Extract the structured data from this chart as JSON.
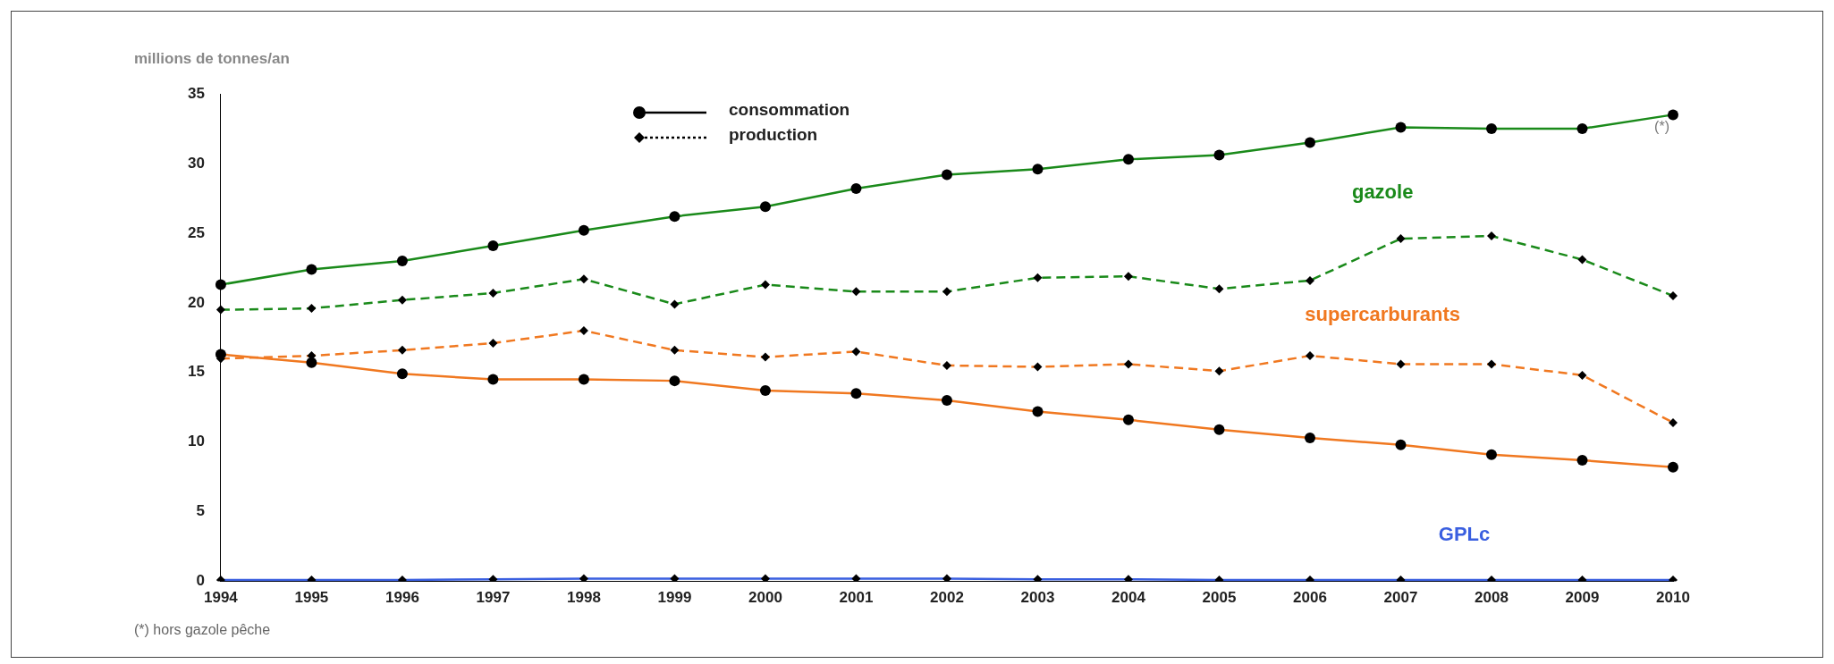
{
  "chart_data": {
    "type": "line",
    "ylabel": "millions de tonnes/an",
    "categories": [
      "1994",
      "1995",
      "1996",
      "1997",
      "1998",
      "1999",
      "2000",
      "2001",
      "2002",
      "2003",
      "2004",
      "2005",
      "2006",
      "2007",
      "2008",
      "2009",
      "2010"
    ],
    "series": [
      {
        "name": "gazole",
        "color": "#1a8a1a",
        "marker": "circle",
        "line_style": "solid",
        "values": [
          21.3,
          22.4,
          23.0,
          24.1,
          25.2,
          26.2,
          26.9,
          28.2,
          29.2,
          29.6,
          30.3,
          30.6,
          31.5,
          32.6,
          32.5,
          32.5,
          33.5
        ]
      },
      {
        "color": "#1a8a1a",
        "marker": "diamond",
        "line_style": "dashed",
        "values": [
          19.5,
          19.6,
          20.2,
          20.7,
          21.7,
          19.9,
          21.3,
          20.8,
          20.8,
          21.8,
          21.9,
          21.0,
          21.6,
          24.6,
          24.8,
          23.1,
          20.5
        ]
      },
      {
        "name": "supercarburants",
        "color": "#f07820",
        "marker": "circle",
        "line_style": "solid",
        "values": [
          16.3,
          15.7,
          14.9,
          14.5,
          14.5,
          14.4,
          13.7,
          13.5,
          13.0,
          12.2,
          11.6,
          10.9,
          10.3,
          9.8,
          9.1,
          8.7,
          8.2
        ]
      },
      {
        "color": "#f07820",
        "marker": "diamond",
        "line_style": "dashed",
        "values": [
          16.0,
          16.2,
          16.6,
          17.1,
          18.0,
          16.6,
          16.1,
          16.5,
          15.5,
          15.4,
          15.6,
          15.1,
          16.2,
          15.6,
          15.6,
          14.8,
          11.4
        ]
      },
      {
        "name": "GPLc",
        "color": "#3a5fe0",
        "marker": "diamond",
        "line_style": "solid",
        "values": [
          0.1,
          0.1,
          0.1,
          0.15,
          0.2,
          0.2,
          0.2,
          0.2,
          0.2,
          0.15,
          0.15,
          0.1,
          0.1,
          0.1,
          0.1,
          0.1,
          0.1
        ]
      }
    ],
    "ylim": [
      0,
      35
    ],
    "yticks": [
      0,
      5,
      10,
      15,
      20,
      25,
      30,
      35
    ],
    "grid": false,
    "annotations": [
      "consommation",
      "production",
      {
        "text": "(*)",
        "x": "2010",
        "y": 33.5
      },
      "(*) hors gazole pêche"
    ]
  }
}
